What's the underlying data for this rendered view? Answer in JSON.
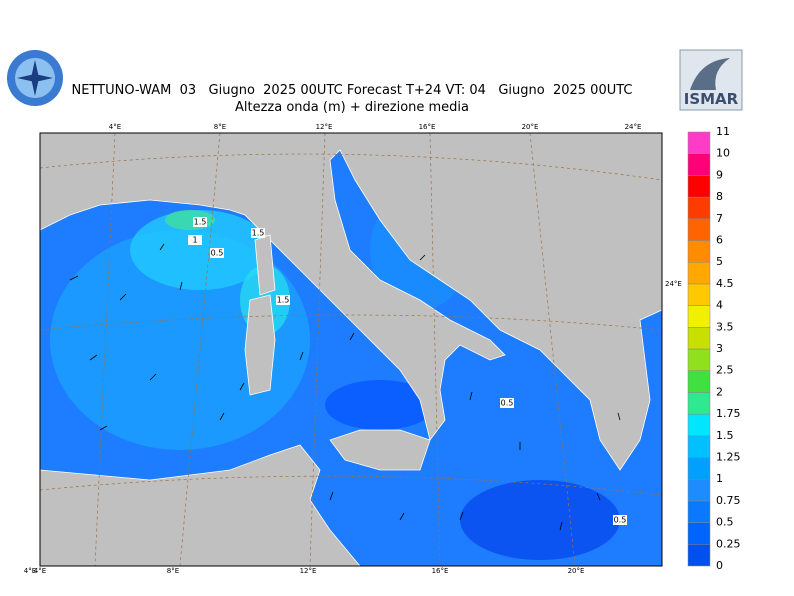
{
  "header": {
    "title": "NETTUNO-WAM  03   Giugno  2025 00UTC Forecast T+24 VT: 04   Giugno  2025 00UTC",
    "subtitle": "Altezza onda (m) + direzione media",
    "logo_text": "ISMAR"
  },
  "map": {
    "top_lon_labels": [
      "4°E",
      "8°E",
      "12°E",
      "16°E",
      "20°E",
      "24°E"
    ],
    "bottom_lon_labels": [
      "4°E",
      "4°E",
      "8°E",
      "12°E",
      "16°E",
      "20°E"
    ],
    "right_lon_label": "24°E",
    "contour_labels": [
      "1.5",
      "1",
      "1.5",
      "0.5",
      "1.5",
      "0.5",
      "0.5"
    ]
  },
  "colorbar": {
    "labels": [
      0,
      0.25,
      0.5,
      0.75,
      1,
      1.25,
      1.5,
      1.75,
      2,
      2.5,
      3,
      3.5,
      4,
      4.5,
      5,
      6,
      7,
      8,
      9,
      10,
      11
    ],
    "colors": [
      "#0050f0",
      "#0064ff",
      "#0a78ff",
      "#1e8cff",
      "#00a0ff",
      "#00c0ff",
      "#00e6ff",
      "#30e890",
      "#40e040",
      "#90e020",
      "#c8e000",
      "#f0f000",
      "#ffc800",
      "#ffa800",
      "#ff8c00",
      "#ff6400",
      "#ff3c00",
      "#ff0000",
      "#ff0078",
      "#ff3cc8"
    ]
  }
}
